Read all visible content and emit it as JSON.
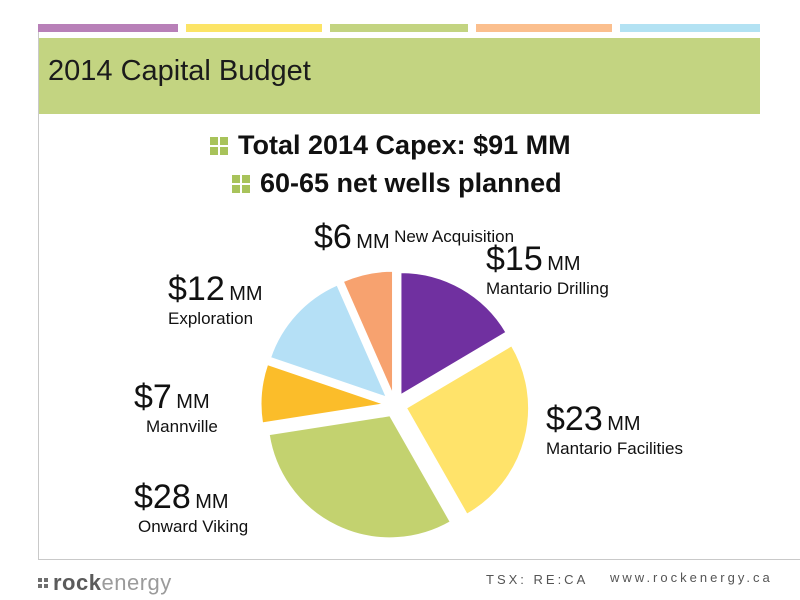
{
  "slide": {
    "title": "2014 Capital Budget",
    "stripe_colors": [
      "#b880b8",
      "#fce466",
      "#c3d481",
      "#fbbf8e",
      "#b3e2f3"
    ],
    "accent_color": "#c3d481"
  },
  "bullets": [
    {
      "icon": "green-square-bullet-icon",
      "text": "Total  2014 Capex: $91 MM"
    },
    {
      "icon": "green-square-bullet-icon",
      "text": "60-65 net wells planned"
    }
  ],
  "chart_data": {
    "type": "pie",
    "exploded": true,
    "unit": "MM",
    "series": [
      {
        "amount": "$15",
        "unit": "MM",
        "name": "Mantario Drilling",
        "value": 15,
        "color": "#7030a0"
      },
      {
        "amount": "$23",
        "unit": "MM",
        "name": "Mantario Facilities",
        "value": 23,
        "color": "#ffe36a"
      },
      {
        "amount": "$28",
        "unit": "MM",
        "name": "Onward Viking",
        "value": 28,
        "color": "#c3d26f"
      },
      {
        "amount": "$7",
        "unit": "MM",
        "name": "Mannville",
        "value": 7,
        "color": "#fbbd2a"
      },
      {
        "amount": "$12",
        "unit": "MM",
        "name": "Exploration",
        "value": 12,
        "color": "#b5e0f6"
      },
      {
        "amount": "$6",
        "unit": "MM",
        "name": "New Acquisition",
        "value": 6,
        "color": "#f7a26f"
      }
    ]
  },
  "footer": {
    "logo_bold": "rock",
    "logo_light": "energy",
    "ticker": "TSX: RE:CA",
    "website": "www.rockenergy.ca"
  }
}
